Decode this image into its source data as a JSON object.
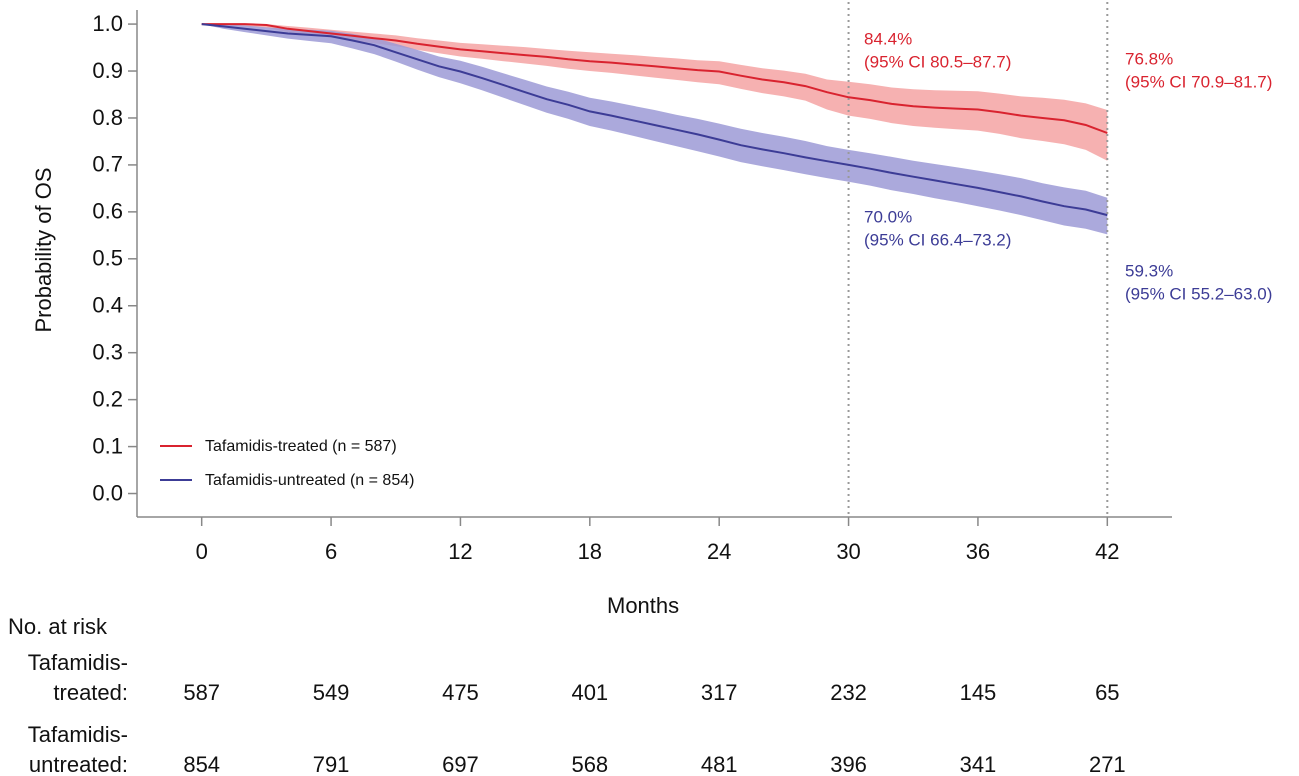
{
  "chart_data": {
    "type": "kaplan-meier",
    "x_label": "Months",
    "y_label": "Probability of OS",
    "x": [
      0,
      1,
      2,
      3,
      4,
      5,
      6,
      7,
      8,
      9,
      10,
      11,
      12,
      13,
      14,
      15,
      16,
      17,
      18,
      19,
      20,
      21,
      22,
      23,
      24,
      25,
      26,
      27,
      28,
      29,
      30,
      31,
      32,
      33,
      34,
      35,
      36,
      37,
      38,
      39,
      40,
      41,
      42
    ],
    "series": [
      {
        "name": "Tafamidis-treated (n = 587)",
        "color": "#d9232f",
        "band_color": "#f4a3a3",
        "values": [
          1.0,
          1.0,
          1.0,
          0.998,
          0.99,
          0.985,
          0.98,
          0.975,
          0.97,
          0.965,
          0.958,
          0.952,
          0.946,
          0.942,
          0.938,
          0.934,
          0.93,
          0.925,
          0.921,
          0.918,
          0.914,
          0.91,
          0.906,
          0.902,
          0.899,
          0.89,
          0.882,
          0.876,
          0.868,
          0.855,
          0.844,
          0.838,
          0.83,
          0.825,
          0.822,
          0.82,
          0.818,
          0.812,
          0.805,
          0.8,
          0.795,
          0.785,
          0.768
        ],
        "lower": [
          1.0,
          0.998,
          0.996,
          0.992,
          0.983,
          0.977,
          0.971,
          0.965,
          0.959,
          0.953,
          0.945,
          0.938,
          0.931,
          0.926,
          0.921,
          0.916,
          0.911,
          0.905,
          0.9,
          0.896,
          0.891,
          0.886,
          0.881,
          0.876,
          0.872,
          0.862,
          0.853,
          0.846,
          0.837,
          0.818,
          0.805,
          0.798,
          0.789,
          0.783,
          0.779,
          0.776,
          0.773,
          0.766,
          0.757,
          0.751,
          0.744,
          0.732,
          0.709
        ],
        "upper": [
          1.0,
          1.0,
          1.0,
          1.0,
          0.996,
          0.992,
          0.988,
          0.984,
          0.98,
          0.976,
          0.97,
          0.965,
          0.96,
          0.957,
          0.954,
          0.951,
          0.947,
          0.943,
          0.94,
          0.937,
          0.934,
          0.93,
          0.927,
          0.923,
          0.921,
          0.913,
          0.906,
          0.901,
          0.894,
          0.882,
          0.877,
          0.872,
          0.865,
          0.861,
          0.859,
          0.858,
          0.857,
          0.852,
          0.846,
          0.843,
          0.839,
          0.831,
          0.817
        ]
      },
      {
        "name": "Tafamidis-untreated (n = 854)",
        "color": "#3c3c96",
        "band_color": "#9c9ad6",
        "values": [
          1.0,
          0.995,
          0.99,
          0.985,
          0.98,
          0.977,
          0.974,
          0.965,
          0.955,
          0.94,
          0.925,
          0.91,
          0.899,
          0.885,
          0.87,
          0.855,
          0.84,
          0.828,
          0.814,
          0.805,
          0.795,
          0.785,
          0.775,
          0.765,
          0.754,
          0.742,
          0.733,
          0.725,
          0.716,
          0.708,
          0.7,
          0.692,
          0.683,
          0.675,
          0.667,
          0.659,
          0.651,
          0.642,
          0.633,
          0.622,
          0.612,
          0.605,
          0.593
        ],
        "lower": [
          1.0,
          0.99,
          0.983,
          0.976,
          0.969,
          0.964,
          0.959,
          0.948,
          0.936,
          0.92,
          0.903,
          0.887,
          0.874,
          0.859,
          0.843,
          0.827,
          0.811,
          0.798,
          0.783,
          0.773,
          0.762,
          0.751,
          0.74,
          0.729,
          0.718,
          0.706,
          0.697,
          0.689,
          0.68,
          0.672,
          0.664,
          0.656,
          0.646,
          0.638,
          0.629,
          0.621,
          0.612,
          0.603,
          0.593,
          0.582,
          0.571,
          0.564,
          0.552
        ],
        "upper": [
          1.0,
          1.0,
          0.997,
          0.993,
          0.99,
          0.988,
          0.986,
          0.979,
          0.971,
          0.958,
          0.945,
          0.931,
          0.922,
          0.909,
          0.895,
          0.881,
          0.867,
          0.856,
          0.843,
          0.835,
          0.826,
          0.817,
          0.807,
          0.798,
          0.788,
          0.777,
          0.768,
          0.76,
          0.751,
          0.74,
          0.732,
          0.725,
          0.717,
          0.709,
          0.702,
          0.695,
          0.688,
          0.68,
          0.672,
          0.661,
          0.652,
          0.645,
          0.63
        ]
      }
    ],
    "xlim": [
      -3,
      45
    ],
    "ylim": [
      -0.05,
      1.03
    ],
    "xticks": [
      0,
      6,
      12,
      18,
      24,
      30,
      36,
      42
    ],
    "yticks": [
      {
        "value": 0,
        "label": "0.0"
      },
      0.1,
      0.2,
      0.3,
      0.4,
      0.5,
      0.6,
      0.7,
      0.8,
      0.9,
      {
        "value": 1,
        "label": "1.0"
      }
    ],
    "reference_lines_x": [
      30,
      42
    ],
    "legend": "lower left",
    "annotations": [
      {
        "text": [
          "84.4%",
          "(95% CI 80.5–87.7)"
        ],
        "color": "#d9232f"
      },
      {
        "text": [
          "76.8%",
          "(95% CI 70.9–81.7)"
        ],
        "color": "#d9232f"
      },
      {
        "text": [
          "70.0%",
          "(95% CI 66.4–73.2)"
        ],
        "color": "#3c3c96"
      },
      {
        "text": [
          "59.3%",
          "(95% CI 55.2–63.0)"
        ],
        "color": "#3c3c96"
      }
    ],
    "risk_table": {
      "title": "No. at risk",
      "rows": [
        {
          "label": [
            "Tafamidis-",
            "treated:"
          ],
          "values": [
            587,
            549,
            475,
            401,
            317,
            232,
            145,
            65
          ]
        },
        {
          "label": [
            "Tafamidis-",
            "untreated:"
          ],
          "values": [
            854,
            791,
            697,
            568,
            481,
            396,
            341,
            271
          ]
        }
      ]
    }
  }
}
